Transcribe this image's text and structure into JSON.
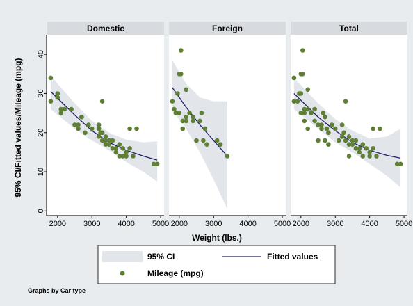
{
  "chart_data": {
    "type": "scatter",
    "title": "",
    "xlabel": "Weight (lbs.)",
    "ylabel": "95% CI/Fitted values/Mileage (mpg)",
    "xlim": [
      1700,
      5100
    ],
    "ylim": [
      -1,
      45
    ],
    "x_ticks": [
      2000,
      3000,
      4000,
      5000
    ],
    "y_ticks": [
      0,
      10,
      20,
      30,
      40
    ],
    "grid": false,
    "legend_position": "bottom",
    "note": "Graphs by Car type",
    "colors": {
      "ci_band": "#e2e6ea",
      "fitted_line": "#1f1f66",
      "points": "#5f7f36",
      "panel_header": "#d7dbe0",
      "plot_background": "#ffffff",
      "outer_background": "#e8ecef"
    },
    "legend": {
      "ci": "95% CI",
      "fitted": "Fitted values",
      "points": "Mileage (mpg)"
    },
    "panels": [
      {
        "title": "Domestic",
        "points": [
          [
            1800,
            34
          ],
          [
            1800,
            28
          ],
          [
            2000,
            30
          ],
          [
            2000,
            29
          ],
          [
            2100,
            26
          ],
          [
            2100,
            25
          ],
          [
            2200,
            26
          ],
          [
            2400,
            26
          ],
          [
            2500,
            22
          ],
          [
            2600,
            21
          ],
          [
            2600,
            22
          ],
          [
            2700,
            24
          ],
          [
            2700,
            24
          ],
          [
            2800,
            20
          ],
          [
            2900,
            22
          ],
          [
            3000,
            21
          ],
          [
            3200,
            22
          ],
          [
            3200,
            21
          ],
          [
            3200,
            19
          ],
          [
            3250,
            20
          ],
          [
            3300,
            28
          ],
          [
            3300,
            20
          ],
          [
            3300,
            18
          ],
          [
            3400,
            19
          ],
          [
            3400,
            18
          ],
          [
            3400,
            17
          ],
          [
            3500,
            18
          ],
          [
            3500,
            17
          ],
          [
            3600,
            18
          ],
          [
            3600,
            16
          ],
          [
            3700,
            16
          ],
          [
            3700,
            15
          ],
          [
            3800,
            14
          ],
          [
            3800,
            17
          ],
          [
            3900,
            16
          ],
          [
            4000,
            14
          ],
          [
            4000,
            15
          ],
          [
            4100,
            21
          ],
          [
            4100,
            16
          ],
          [
            4200,
            14
          ],
          [
            4300,
            21
          ],
          [
            4800,
            12
          ],
          [
            4900,
            12
          ],
          [
            3900,
            14
          ]
        ],
        "fit": [
          [
            1800,
            30.5
          ],
          [
            2500,
            24.5
          ],
          [
            3000,
            20.5
          ],
          [
            3500,
            17.5
          ],
          [
            4000,
            15.5
          ],
          [
            4500,
            14.0
          ],
          [
            4900,
            13.0
          ]
        ],
        "ci_upper": [
          [
            1800,
            34.5
          ],
          [
            2500,
            27.5
          ],
          [
            3000,
            23.0
          ],
          [
            3500,
            20.0
          ],
          [
            4000,
            18.2
          ],
          [
            4500,
            17.5
          ],
          [
            4900,
            17.8
          ]
        ],
        "ci_lower": [
          [
            1800,
            26.0
          ],
          [
            2500,
            21.0
          ],
          [
            3000,
            18.0
          ],
          [
            3500,
            15.5
          ],
          [
            4000,
            12.5
          ],
          [
            4500,
            10.0
          ],
          [
            4900,
            7.5
          ]
        ]
      },
      {
        "title": "Foreign",
        "points": [
          [
            1800,
            28
          ],
          [
            1850,
            26
          ],
          [
            1900,
            25
          ],
          [
            1950,
            30
          ],
          [
            2000,
            25
          ],
          [
            2000,
            35
          ],
          [
            2050,
            35
          ],
          [
            2050,
            41
          ],
          [
            2100,
            23
          ],
          [
            2100,
            21
          ],
          [
            2200,
            24
          ],
          [
            2200,
            31
          ],
          [
            2200,
            23
          ],
          [
            2300,
            25
          ],
          [
            2400,
            24
          ],
          [
            2400,
            23
          ],
          [
            2500,
            18
          ],
          [
            2600,
            23
          ],
          [
            2650,
            25
          ],
          [
            2700,
            18
          ],
          [
            2750,
            21
          ],
          [
            2800,
            17
          ],
          [
            3100,
            18
          ],
          [
            3200,
            17
          ],
          [
            3400,
            14
          ]
        ],
        "fit": [
          [
            1800,
            31.5
          ],
          [
            2200,
            26.5
          ],
          [
            2600,
            22.0
          ],
          [
            3000,
            18.0
          ],
          [
            3400,
            14.0
          ]
        ],
        "ci_upper": [
          [
            1800,
            38.5
          ],
          [
            2200,
            32.5
          ],
          [
            2600,
            29.0
          ],
          [
            3000,
            28.0
          ],
          [
            3400,
            28.0
          ]
        ],
        "ci_lower": [
          [
            1800,
            25.5
          ],
          [
            2200,
            21.0
          ],
          [
            2600,
            15.0
          ],
          [
            3000,
            8.0
          ],
          [
            3400,
            0.5
          ]
        ]
      },
      {
        "title": "Total",
        "points": [
          [
            1800,
            34
          ],
          [
            1800,
            28
          ],
          [
            1900,
            28
          ],
          [
            1950,
            30
          ],
          [
            2000,
            30
          ],
          [
            2000,
            35
          ],
          [
            2000,
            25
          ],
          [
            2050,
            41
          ],
          [
            2050,
            35
          ],
          [
            2100,
            26
          ],
          [
            2100,
            25
          ],
          [
            2100,
            23
          ],
          [
            2200,
            26
          ],
          [
            2200,
            31
          ],
          [
            2200,
            21
          ],
          [
            2300,
            25
          ],
          [
            2400,
            26
          ],
          [
            2400,
            23
          ],
          [
            2500,
            22
          ],
          [
            2500,
            18
          ],
          [
            2600,
            21
          ],
          [
            2600,
            22
          ],
          [
            2650,
            25
          ],
          [
            2700,
            24
          ],
          [
            2700,
            18
          ],
          [
            2750,
            21
          ],
          [
            2800,
            20
          ],
          [
            2800,
            17
          ],
          [
            2900,
            22
          ],
          [
            3000,
            21
          ],
          [
            3100,
            18
          ],
          [
            3200,
            22
          ],
          [
            3200,
            19
          ],
          [
            3250,
            20
          ],
          [
            3300,
            28
          ],
          [
            3300,
            18
          ],
          [
            3400,
            19
          ],
          [
            3400,
            17
          ],
          [
            3400,
            14
          ],
          [
            3500,
            18
          ],
          [
            3500,
            17
          ],
          [
            3600,
            18
          ],
          [
            3600,
            16
          ],
          [
            3700,
            16
          ],
          [
            3700,
            15
          ],
          [
            3800,
            14
          ],
          [
            3800,
            17
          ],
          [
            3900,
            16
          ],
          [
            4000,
            14
          ],
          [
            4000,
            15
          ],
          [
            4100,
            21
          ],
          [
            4100,
            16
          ],
          [
            4200,
            14
          ],
          [
            4300,
            21
          ],
          [
            4800,
            12
          ],
          [
            4900,
            12
          ]
        ],
        "fit": [
          [
            1800,
            30.0
          ],
          [
            2500,
            24.0
          ],
          [
            3000,
            20.5
          ],
          [
            3500,
            17.5
          ],
          [
            4000,
            15.5
          ],
          [
            4500,
            14.2
          ],
          [
            4900,
            13.5
          ]
        ],
        "ci_upper": [
          [
            1800,
            34.0
          ],
          [
            2500,
            27.5
          ],
          [
            3000,
            23.5
          ],
          [
            3500,
            20.5
          ],
          [
            4000,
            18.5
          ],
          [
            4500,
            19.0
          ],
          [
            4900,
            21.0
          ]
        ],
        "ci_lower": [
          [
            1800,
            26.0
          ],
          [
            2500,
            21.0
          ],
          [
            3000,
            17.5
          ],
          [
            3500,
            15.0
          ],
          [
            4000,
            12.0
          ],
          [
            4500,
            9.0
          ],
          [
            4900,
            6.0
          ]
        ]
      }
    ]
  }
}
